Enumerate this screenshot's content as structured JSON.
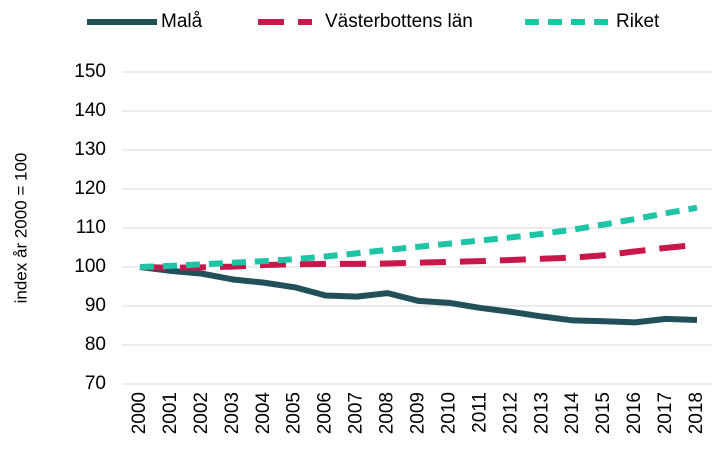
{
  "chart_data": {
    "type": "line",
    "y_label": "index år 2000 = 100",
    "categories": [
      "2000",
      "2001",
      "2002",
      "2003",
      "2004",
      "2005",
      "2006",
      "2007",
      "2008",
      "2009",
      "2010",
      "2011",
      "2012",
      "2013",
      "2014",
      "2015",
      "2016",
      "2017",
      "2018"
    ],
    "series": [
      {
        "name": "Malå",
        "color": "#21505a",
        "dash": "solid",
        "values": [
          100,
          99,
          98.3,
          96.8,
          96,
          94.8,
          92.7,
          92.4,
          93.3,
          91.3,
          90.8,
          89.5,
          88.5,
          87.3,
          86.3,
          86.1,
          85.8,
          86.7,
          86.4
        ]
      },
      {
        "name": "Västerbottens län",
        "color": "#c8174a",
        "dash": "long",
        "values": [
          100,
          99.8,
          99.9,
          100.1,
          100.5,
          100.7,
          100.8,
          100.8,
          100.9,
          101.1,
          101.3,
          101.5,
          101.8,
          102.1,
          102.4,
          103,
          104,
          104.9,
          105.7
        ]
      },
      {
        "name": "Riket",
        "color": "#1ec4a6",
        "dash": "short",
        "values": [
          100,
          100.3,
          100.7,
          101.1,
          101.5,
          102,
          102.7,
          103.5,
          104.4,
          105.2,
          106,
          106.8,
          107.6,
          108.5,
          109.6,
          110.9,
          112.3,
          113.8,
          115.2
        ]
      }
    ],
    "ylim": [
      70,
      150
    ],
    "yticks": [
      70,
      80,
      90,
      100,
      110,
      120,
      130,
      140,
      150
    ],
    "grid": true,
    "legend": "top"
  }
}
